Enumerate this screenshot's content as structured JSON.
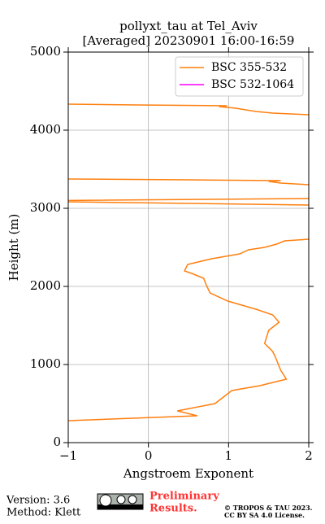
{
  "chart_data": {
    "type": "line",
    "title": "pollyxt_tau at Tel_Aviv",
    "subtitle": "[Averaged] 20230901 16:00-16:59",
    "x_label": "Angstroem Exponent",
    "y_label": "Height (m)",
    "y": [
      281,
      344,
      406,
      500,
      667,
      729,
      812,
      927,
      1104,
      1167,
      1271,
      1438,
      1542,
      1635,
      1708,
      1813,
      1917,
      2021,
      2104,
      2167,
      2198,
      2281,
      2354,
      2417,
      2469,
      2500,
      2542,
      2583,
      2604,
      2800,
      3042,
      3083,
      3100,
      3125,
      3200,
      3302,
      3323,
      3344,
      3354,
      3365,
      3375,
      3800,
      4198,
      4219,
      4240,
      4281,
      4302,
      4313,
      4323,
      4333
    ],
    "series": [
      {
        "name": "BSC 355-532",
        "color": "#ff7f0e",
        "values": [
          -1,
          0.61,
          0.36,
          0.83,
          1.04,
          1.39,
          1.72,
          1.65,
          1.58,
          1.55,
          1.45,
          1.5,
          1.63,
          1.55,
          1.34,
          0.99,
          0.77,
          0.72,
          0.69,
          0.54,
          0.45,
          0.49,
          0.79,
          1.14,
          1.25,
          1.45,
          1.6,
          1.7,
          2.0,
          null,
          2.0,
          -1,
          -1,
          2.0,
          null,
          2.0,
          1.65,
          1.5,
          1.65,
          0.5,
          -1,
          null,
          2.0,
          1.55,
          1.34,
          1.09,
          0.88,
          0.98,
          -0.13,
          -1
        ]
      },
      {
        "name": "BSC 532-1064",
        "color": "#ff00ff",
        "values": [
          null,
          null,
          null,
          null,
          null,
          null,
          null,
          null,
          null,
          null,
          null,
          null,
          null,
          null,
          null,
          null,
          null,
          null,
          null,
          null,
          null,
          null,
          null,
          null,
          null,
          null,
          null,
          null,
          null,
          null,
          null,
          null,
          null,
          null,
          null,
          null,
          null,
          null,
          null,
          null,
          null,
          null,
          null,
          null,
          null,
          null,
          null,
          null,
          null,
          null
        ]
      }
    ],
    "xlim": [
      -1,
      2
    ],
    "xticks": [
      {
        "value": -1,
        "label": "−1"
      },
      0,
      1,
      2
    ],
    "ylim": [
      0,
      5000
    ],
    "yticks": [
      0,
      1000,
      2000,
      3000,
      4000,
      5000
    ],
    "grid": true,
    "legend": "upper right"
  },
  "footer": {
    "version": "Version: 3.6",
    "method": "Method: Klett",
    "preliminary": [
      "Preliminary",
      "Results."
    ],
    "copyright": [
      "© TROPOS & TAU 2023.",
      "CC BY SA 4.0 License."
    ]
  }
}
